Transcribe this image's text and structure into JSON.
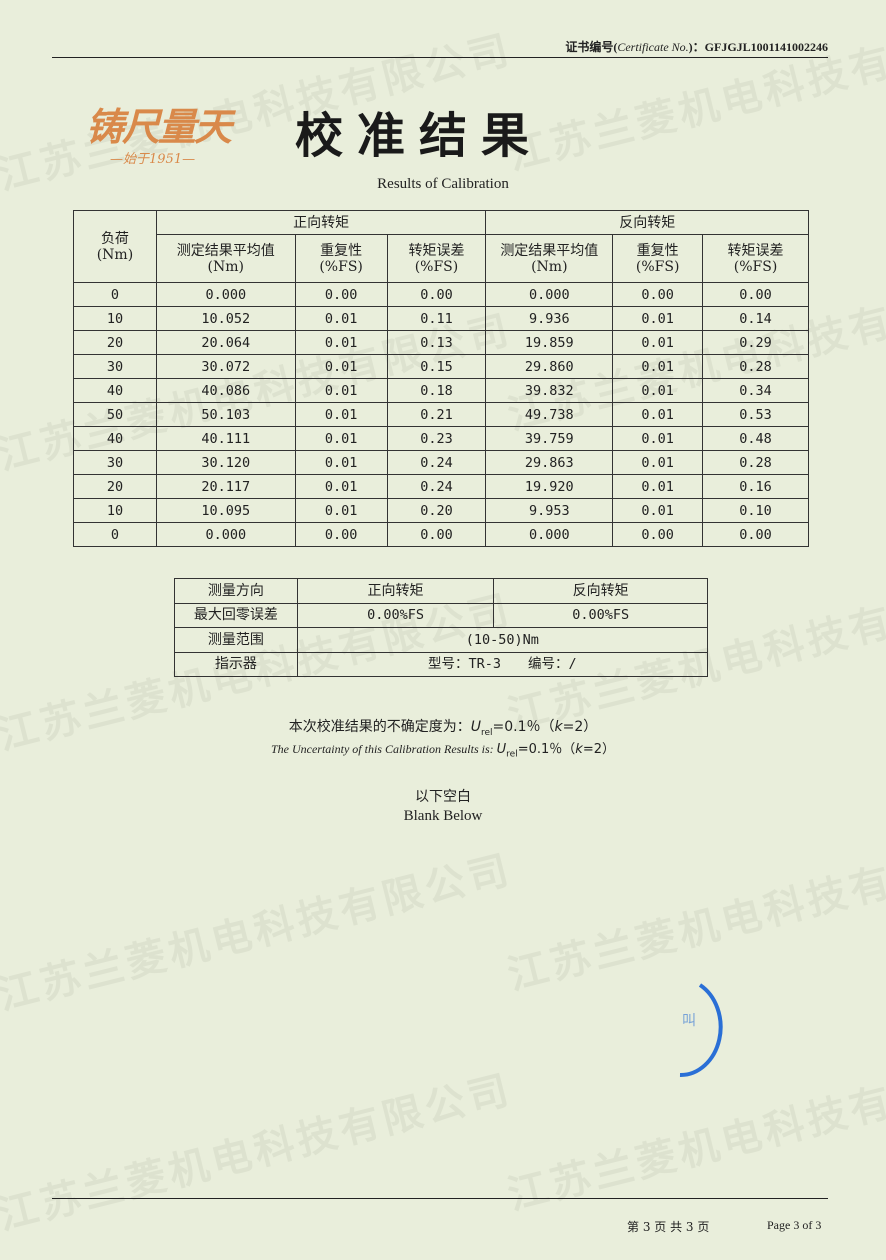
{
  "header": {
    "cert_label": "证书编号(",
    "cert_label_en": "Certificate No.",
    "cert_label_end": ")：",
    "cert_no": "GFJGJL1001141002246",
    "logo_text": "铸尺量天",
    "logo_since": "—始于1951—",
    "title": "校准结果",
    "subtitle": "Results of Calibration"
  },
  "watermark": "江苏兰菱机电科技有限公司",
  "table1": {
    "load_header": "负荷",
    "load_unit": "(Nm)",
    "forward": "正向转矩",
    "reverse": "反向转矩",
    "col_mean": "测定结果平均值",
    "col_mean_unit": "(Nm)",
    "col_rep": "重复性",
    "col_err": "转矩误差",
    "col_fs": "(%FS)",
    "rows": [
      [
        "0",
        "0.000",
        "0.00",
        "0.00",
        "0.000",
        "0.00",
        "0.00"
      ],
      [
        "10",
        "10.052",
        "0.01",
        "0.11",
        "9.936",
        "0.01",
        "0.14"
      ],
      [
        "20",
        "20.064",
        "0.01",
        "0.13",
        "19.859",
        "0.01",
        "0.29"
      ],
      [
        "30",
        "30.072",
        "0.01",
        "0.15",
        "29.860",
        "0.01",
        "0.28"
      ],
      [
        "40",
        "40.086",
        "0.01",
        "0.18",
        "39.832",
        "0.01",
        "0.34"
      ],
      [
        "50",
        "50.103",
        "0.01",
        "0.21",
        "49.738",
        "0.01",
        "0.53"
      ],
      [
        "40",
        "40.111",
        "0.01",
        "0.23",
        "39.759",
        "0.01",
        "0.48"
      ],
      [
        "30",
        "30.120",
        "0.01",
        "0.24",
        "29.863",
        "0.01",
        "0.28"
      ],
      [
        "20",
        "20.117",
        "0.01",
        "0.24",
        "19.920",
        "0.01",
        "0.16"
      ],
      [
        "10",
        "10.095",
        "0.01",
        "0.20",
        "9.953",
        "0.01",
        "0.10"
      ],
      [
        "0",
        "0.000",
        "0.00",
        "0.00",
        "0.000",
        "0.00",
        "0.00"
      ]
    ]
  },
  "table2": {
    "direction": "测量方向",
    "forward": "正向转矩",
    "reverse": "反向转矩",
    "zero_err": "最大回零误差",
    "zero_fwd": "0.00%FS",
    "zero_rev": "0.00%FS",
    "range": "测量范围",
    "range_val": "(10-50)Nm",
    "indicator": "指示器",
    "indicator_val": "型号：TR-3　　编号：/"
  },
  "uncertainty": {
    "cn_prefix": "本次校准结果的不确定度为：",
    "en_prefix": "The Uncertainty of this Calibration Results is: ",
    "U": "U",
    "sub": "rel",
    "value": "=0.1％（",
    "k": "k",
    "kval": "=2）"
  },
  "blank": {
    "cn": "以下空白",
    "en": "Blank Below"
  },
  "footer": {
    "cn": "第 3 页 共 3 页",
    "en": "Page 3 of 3"
  },
  "colors": {
    "paper": "#e9eedb",
    "logo": "#d9894a",
    "stamp": "#2a6fd6"
  }
}
